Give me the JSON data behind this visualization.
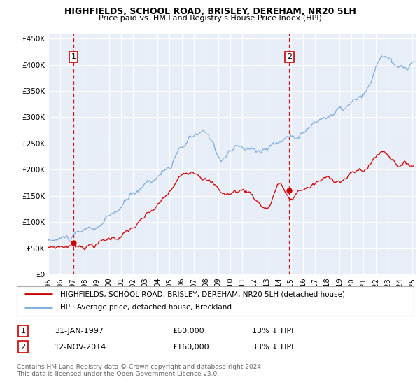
{
  "title": "HIGHFIELDS, SCHOOL ROAD, BRISLEY, DEREHAM, NR20 5LH",
  "subtitle": "Price paid vs. HM Land Registry's House Price Index (HPI)",
  "legend_line1": "HIGHFIELDS, SCHOOL ROAD, BRISLEY, DEREHAM, NR20 5LH (detached house)",
  "legend_line2": "HPI: Average price, detached house, Breckland",
  "transaction1_label": "1",
  "transaction1_date": "31-JAN-1997",
  "transaction1_price": "£60,000",
  "transaction1_hpi": "13% ↓ HPI",
  "transaction1_year": 1997.08,
  "transaction1_value": 60000,
  "transaction2_label": "2",
  "transaction2_date": "12-NOV-2014",
  "transaction2_price": "£160,000",
  "transaction2_hpi": "33% ↓ HPI",
  "transaction2_year": 2014.87,
  "transaction2_value": 160000,
  "footer": "Contains HM Land Registry data © Crown copyright and database right 2024.\nThis data is licensed under the Open Government Licence v3.0.",
  "hpi_color": "#7aade0",
  "price_color": "#cc0000",
  "dashed_color": "#cc0000",
  "background_color": "#e8eef8",
  "ylim": [
    0,
    460000
  ],
  "xlim_start": 1995.0,
  "xlim_end": 2025.3
}
